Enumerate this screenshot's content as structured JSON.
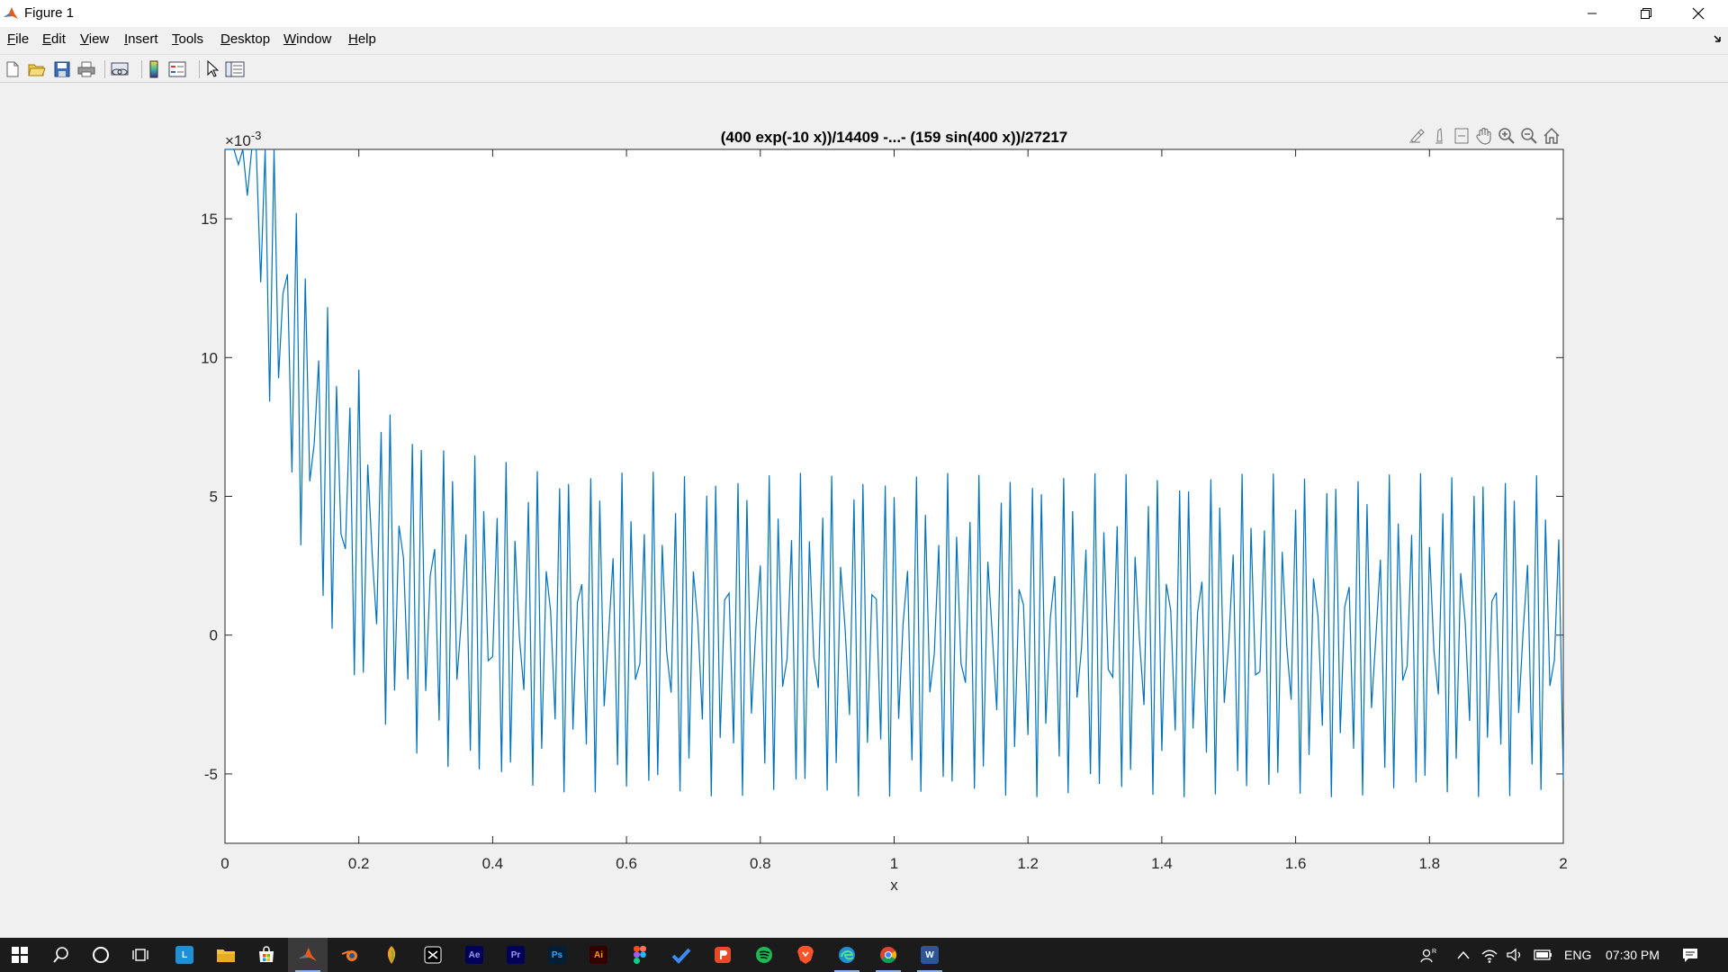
{
  "window": {
    "title": "Figure 1",
    "menu": [
      {
        "label": "File",
        "key": "F"
      },
      {
        "label": "Edit",
        "key": "E"
      },
      {
        "label": "View",
        "key": "V"
      },
      {
        "label": "Insert",
        "key": "I"
      },
      {
        "label": "Tools",
        "key": "T"
      },
      {
        "label": "Desktop",
        "key": "D"
      },
      {
        "label": "Window",
        "key": "W"
      },
      {
        "label": "Help",
        "key": "H"
      }
    ],
    "toolbar_icons": [
      "new-figure-icon",
      "open-file-icon",
      "save-icon",
      "print-icon",
      "link-plot-icon",
      "insert-colorbar-icon",
      "insert-legend-icon",
      "edit-plot-arrow-icon",
      "property-inspector-icon"
    ],
    "axes_toolbar_icons": [
      "brush-data-icon",
      "data-tips-icon",
      "restore-view-icon",
      "pan-hand-icon",
      "zoom-in-icon",
      "zoom-out-icon",
      "home-icon"
    ]
  },
  "chart_data": {
    "type": "line",
    "title": "(400 exp(-10 x))/14409 -...- (159 sin(400 x))/27217",
    "xlabel": "x",
    "ylabel": "",
    "xlim": [
      0,
      2
    ],
    "ylim": [
      -0.0075,
      0.0175
    ],
    "x_ticks": [
      "0",
      "0.2",
      "0.4",
      "0.6",
      "0.8",
      "1",
      "1.2",
      "1.4",
      "1.6",
      "1.8",
      "2"
    ],
    "y_ticks": [
      "-5",
      "0",
      "5",
      "10",
      "15"
    ],
    "y_exponent_label": "×10",
    "y_exponent_power": "-3",
    "grid": false,
    "series": [
      {
        "color": "#0072bd",
        "function": "(400 exp(-10 x))/14409 - (159 sin(400 x))/27217",
        "sample_count": 300,
        "x_range": [
          0,
          2
        ]
      }
    ]
  },
  "taskbar": {
    "apps": [
      "start-icon",
      "search-icon",
      "cortana-icon",
      "task-view-icon",
      "app-l-icon",
      "file-explorer-icon",
      "store-icon",
      "matlab-icon",
      "blender-icon",
      "fl-studio-icon",
      "capcut-icon",
      "after-effects-icon",
      "premiere-pro-icon",
      "photoshop-icon",
      "illustrator-icon",
      "figma-icon",
      "todo-icon",
      "ppsspp-icon",
      "spotify-icon",
      "brave-icon",
      "edge-icon",
      "chrome-icon",
      "word-icon"
    ],
    "tiles": {
      "ae": "Ae",
      "pr": "Pr",
      "ps": "Ps",
      "ai": "Ai",
      "word": "W",
      "l": "L"
    },
    "language": "ENG",
    "time": "07:30 PM"
  }
}
